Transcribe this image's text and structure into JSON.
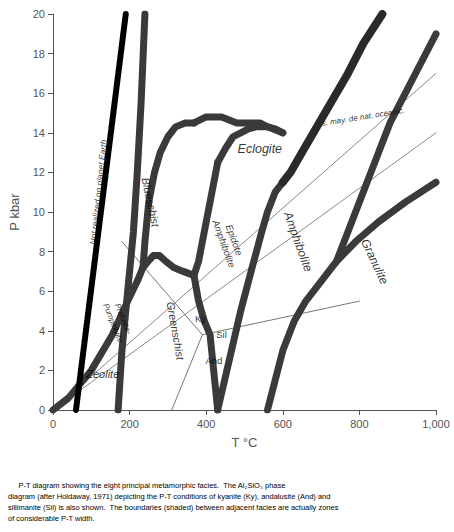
{
  "chart_data": {
    "type": "line",
    "xlabel": "T °C",
    "ylabel": "P kbar",
    "xlim": [
      0,
      1000
    ],
    "ylim": [
      0,
      20
    ],
    "xticks": [
      0,
      200,
      400,
      600,
      800,
      1000
    ],
    "yticks": [
      0,
      2,
      4,
      6,
      8,
      10,
      12,
      14,
      16,
      18,
      20
    ],
    "grid": false,
    "caption": "     P-T diagram showing the eight principal metamorphic facies.  The Al₂SiO₅ phase\ndiagram (after Holdaway, 1971) depicting the P-T conditions of kyanite (Ky), andalusite (And) and\nsillimanite (Sil) is also shown.  The boundaries (shaded) between adjacent facies are actually zones\nof considerable P-T width.",
    "series": [
      {
        "color": "#3a3a3a",
        "x": [
          170,
          180,
          195,
          210,
          220,
          230,
          240
        ],
        "values": [
          0,
          3,
          6,
          9,
          12,
          15.5,
          20
        ]
      },
      {
        "color": "#3a3a3a",
        "x": [
          0,
          40,
          100,
          155,
          195,
          220,
          235
        ],
        "values": [
          0,
          0.6,
          2.0,
          3.8,
          5.5,
          6.5,
          7.2
        ]
      },
      {
        "color": "#3a3a3a",
        "x": [
          235,
          240,
          250,
          265,
          280,
          300,
          320,
          345,
          368
        ],
        "values": [
          7.2,
          8.5,
          10.5,
          12.0,
          13.0,
          13.8,
          14.3,
          14.5,
          14.5
        ]
      },
      {
        "color": "#3a3a3a",
        "x": [
          368,
          400,
          440,
          480,
          510,
          540,
          560,
          580,
          600
        ],
        "values": [
          14.5,
          14.8,
          14.8,
          14.5,
          14.5,
          14.5,
          14.3,
          14.2,
          14.0
        ]
      },
      {
        "color": "#3a3a3a",
        "x": [
          235,
          248,
          262,
          278,
          295,
          315,
          340,
          368
        ],
        "values": [
          7.2,
          7.5,
          7.8,
          7.8,
          7.5,
          7.2,
          7.0,
          6.8
        ]
      },
      {
        "color": "#3a3a3a",
        "x": [
          368,
          380,
          390,
          400,
          410,
          420,
          430
        ],
        "values": [
          6.8,
          7.5,
          8.5,
          9.5,
          10.5,
          11.5,
          12.5
        ]
      },
      {
        "color": "#3a3a3a",
        "x": [
          430,
          450,
          470,
          490,
          510,
          530,
          560,
          600
        ],
        "values": [
          12.5,
          13.2,
          13.8,
          14.0,
          14.2,
          14.3,
          14.3,
          14.0
        ]
      },
      {
        "color": "#3a3a3a",
        "x": [
          368,
          380,
          395,
          410,
          430
        ],
        "values": [
          6.8,
          5.5,
          4.5,
          3.8,
          0
        ]
      },
      {
        "color": "#3a3a3a",
        "x": [
          430,
          460,
          490,
          520,
          545,
          560,
          580,
          600
        ],
        "values": [
          0,
          2.5,
          5.0,
          7.2,
          9.0,
          10.0,
          11.0,
          11.5
        ]
      },
      {
        "color": "#2a2a2a",
        "x": [
          600,
          620,
          650,
          680,
          710,
          740,
          770,
          810,
          860
        ],
        "values": [
          11.5,
          12.0,
          13.0,
          14.0,
          15.0,
          16.0,
          17.0,
          18.5,
          20.0
        ]
      },
      {
        "color": "#3a3a3a",
        "x": [
          560,
          580,
          600,
          630,
          660,
          700,
          740,
          790,
          850,
          920,
          1000
        ],
        "values": [
          0,
          1.5,
          3.0,
          4.5,
          5.5,
          6.5,
          7.5,
          8.5,
          9.5,
          10.5,
          11.5
        ]
      },
      {
        "color": "#3a3a3a",
        "x": [
          740,
          760,
          790,
          820,
          850,
          880,
          920,
          960,
          1000
        ],
        "values": [
          7.5,
          8.5,
          10.0,
          11.5,
          13.0,
          14.5,
          16.0,
          17.5,
          19.0
        ]
      },
      {
        "color": "black",
        "x": [
          60,
          190
        ],
        "values": [
          0,
          20
        ]
      },
      {
        "color": "#888888",
        "x": [
          0,
          1000
        ],
        "values": [
          0,
          17.0
        ]
      },
      {
        "color": "#888888",
        "x": [
          0,
          1000
        ],
        "values": [
          0,
          14.0
        ]
      },
      {
        "color": "#777777",
        "x": [
          390,
          180
        ],
        "values": [
          3.8,
          8.5
        ]
      },
      {
        "color": "#777777",
        "x": [
          390,
          800
        ],
        "values": [
          3.8,
          5.5
        ]
      },
      {
        "color": "#777777",
        "x": [
          390,
          310
        ],
        "values": [
          3.8,
          0
        ]
      }
    ],
    "annotations": [
      {
        "text": "Zeolite",
        "x": 130,
        "y": 1.8
      },
      {
        "text": "Prehnite-\nPumpellyite",
        "x": 170,
        "y": 4.5
      },
      {
        "text": "Blueschist",
        "x": 255,
        "y": 10.5
      },
      {
        "text": "Greenschist",
        "x": 320,
        "y": 4.0
      },
      {
        "text": "Epidote\nAmphibolite",
        "x": 460,
        "y": 8.5
      },
      {
        "text": "Eclogite",
        "x": 540,
        "y": 13.2
      },
      {
        "text": "Amphibolite",
        "x": 640,
        "y": 8.5
      },
      {
        "text": "Granulite",
        "x": 840,
        "y": 7.5
      },
      {
        "text": "Ky",
        "x": 385,
        "y": 4.6
      },
      {
        "text": "Sil",
        "x": 440,
        "y": 3.8
      },
      {
        "text": "And",
        "x": 420,
        "y": 2.5
      },
      {
        "text": "Not realized on planet Earth",
        "x": 118,
        "y": 11.0
      },
      {
        "text": "s. may. de nat. oceanic.",
        "x": 810,
        "y": 14.8
      }
    ]
  }
}
